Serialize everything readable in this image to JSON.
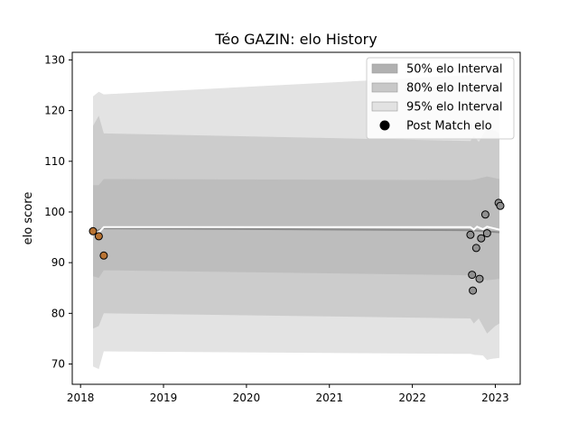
{
  "chart_data": {
    "type": "scatter",
    "title": "Téo GAZIN: elo History",
    "xlabel": "",
    "ylabel": "elo score",
    "xlim": [
      2017.9,
      2023.3
    ],
    "ylim": [
      66,
      131.5
    ],
    "x_ticks": [
      {
        "value": 2018,
        "label": "2018"
      },
      {
        "value": 2019,
        "label": "2019"
      },
      {
        "value": 2020,
        "label": "2020"
      },
      {
        "value": 2021,
        "label": "2021"
      },
      {
        "value": 2022,
        "label": "2022"
      },
      {
        "value": 2023,
        "label": "2023"
      }
    ],
    "y_ticks": [
      {
        "value": 70,
        "label": "70"
      },
      {
        "value": 80,
        "label": "80"
      },
      {
        "value": 90,
        "label": "90"
      },
      {
        "value": 100,
        "label": "100"
      },
      {
        "value": 110,
        "label": "110"
      },
      {
        "value": 120,
        "label": "120"
      },
      {
        "value": 130,
        "label": "130"
      }
    ],
    "bands": [
      {
        "name": "95% elo Interval",
        "color": "#e3e3e3",
        "points": [
          {
            "x": 2018.15,
            "lo": 69.5,
            "hi": 122.8
          },
          {
            "x": 2018.22,
            "lo": 69.0,
            "hi": 123.7
          },
          {
            "x": 2018.28,
            "lo": 72.5,
            "hi": 123.2
          },
          {
            "x": 2022.7,
            "lo": 72.0,
            "hi": 127.0
          },
          {
            "x": 2022.75,
            "lo": 71.8,
            "hi": 127.2
          },
          {
            "x": 2022.85,
            "lo": 71.7,
            "hi": 127.3
          },
          {
            "x": 2022.9,
            "lo": 70.8,
            "hi": 127.6
          },
          {
            "x": 2022.95,
            "lo": 71.0,
            "hi": 127.3
          },
          {
            "x": 2023.05,
            "lo": 71.2,
            "hi": 127.0
          }
        ]
      },
      {
        "name": "80% elo Interval",
        "color": "#cccccc",
        "points": [
          {
            "x": 2018.15,
            "lo": 77.0,
            "hi": 117.0
          },
          {
            "x": 2018.22,
            "lo": 77.5,
            "hi": 119.0
          },
          {
            "x": 2018.28,
            "lo": 80.0,
            "hi": 115.5
          },
          {
            "x": 2022.7,
            "lo": 79.0,
            "hi": 114.0
          },
          {
            "x": 2022.74,
            "lo": 78.0,
            "hi": 115.0
          },
          {
            "x": 2022.8,
            "lo": 79.0,
            "hi": 113.8
          },
          {
            "x": 2022.9,
            "lo": 76.0,
            "hi": 116.5
          },
          {
            "x": 2023.0,
            "lo": 77.5,
            "hi": 116.0
          },
          {
            "x": 2023.05,
            "lo": 78.0,
            "hi": 115.5
          }
        ]
      },
      {
        "name": "50% elo Interval",
        "color": "#bdbdbd",
        "points": [
          {
            "x": 2018.15,
            "lo": 87.3,
            "hi": 105.3
          },
          {
            "x": 2018.22,
            "lo": 87.0,
            "hi": 105.3
          },
          {
            "x": 2018.28,
            "lo": 88.5,
            "hi": 106.5
          },
          {
            "x": 2022.7,
            "lo": 87.5,
            "hi": 106.3
          },
          {
            "x": 2022.75,
            "lo": 87.2,
            "hi": 106.4
          },
          {
            "x": 2022.85,
            "lo": 86.8,
            "hi": 106.8
          },
          {
            "x": 2022.9,
            "lo": 86.5,
            "hi": 107.0
          },
          {
            "x": 2023.05,
            "lo": 86.8,
            "hi": 106.5
          }
        ]
      }
    ],
    "mean_line": {
      "color": "#ffffff",
      "points": [
        {
          "x": 2018.15,
          "y": 96.2
        },
        {
          "x": 2018.22,
          "y": 96.0
        },
        {
          "x": 2018.28,
          "y": 97.0
        },
        {
          "x": 2022.7,
          "y": 97.0
        },
        {
          "x": 2022.74,
          "y": 96.5
        },
        {
          "x": 2022.78,
          "y": 97.1
        },
        {
          "x": 2022.85,
          "y": 96.6
        },
        {
          "x": 2022.9,
          "y": 97.1
        },
        {
          "x": 2023.05,
          "y": 96.5
        }
      ]
    },
    "trend_line": {
      "color": "#8c8c8c",
      "points": [
        {
          "x": 2018.15,
          "y": 96.0
        },
        {
          "x": 2018.28,
          "y": 96.8
        },
        {
          "x": 2022.7,
          "y": 96.4
        },
        {
          "x": 2023.05,
          "y": 96.0
        }
      ]
    },
    "series": [
      {
        "name": "Post Match elo",
        "points": [
          {
            "x": 2018.15,
            "y": 96.2,
            "color": "#b87333"
          },
          {
            "x": 2018.22,
            "y": 95.2,
            "color": "#b87333"
          },
          {
            "x": 2018.28,
            "y": 91.4,
            "color": "#b87333"
          },
          {
            "x": 2022.7,
            "y": 95.5,
            "color": "#909090"
          },
          {
            "x": 2022.72,
            "y": 87.6,
            "color": "#909090"
          },
          {
            "x": 2022.73,
            "y": 84.5,
            "color": "#909090"
          },
          {
            "x": 2022.77,
            "y": 92.9,
            "color": "#909090"
          },
          {
            "x": 2022.81,
            "y": 86.8,
            "color": "#909090"
          },
          {
            "x": 2022.83,
            "y": 94.8,
            "color": "#909090"
          },
          {
            "x": 2022.88,
            "y": 99.5,
            "color": "#909090"
          },
          {
            "x": 2022.9,
            "y": 95.8,
            "color": "#909090"
          },
          {
            "x": 2023.04,
            "y": 101.8,
            "color": "#909090"
          },
          {
            "x": 2023.06,
            "y": 101.2,
            "color": "#909090"
          }
        ]
      }
    ],
    "legend": {
      "placement": "top-right",
      "entries": [
        {
          "label": "50% elo Interval",
          "kind": "patch",
          "color": "#b1b1b1"
        },
        {
          "label": "80% elo Interval",
          "kind": "patch",
          "color": "#c8c8c8"
        },
        {
          "label": "95% elo Interval",
          "kind": "patch",
          "color": "#e2e2e2"
        },
        {
          "label": "Post Match elo",
          "kind": "marker",
          "color": "#000000"
        }
      ]
    },
    "grid": false
  }
}
